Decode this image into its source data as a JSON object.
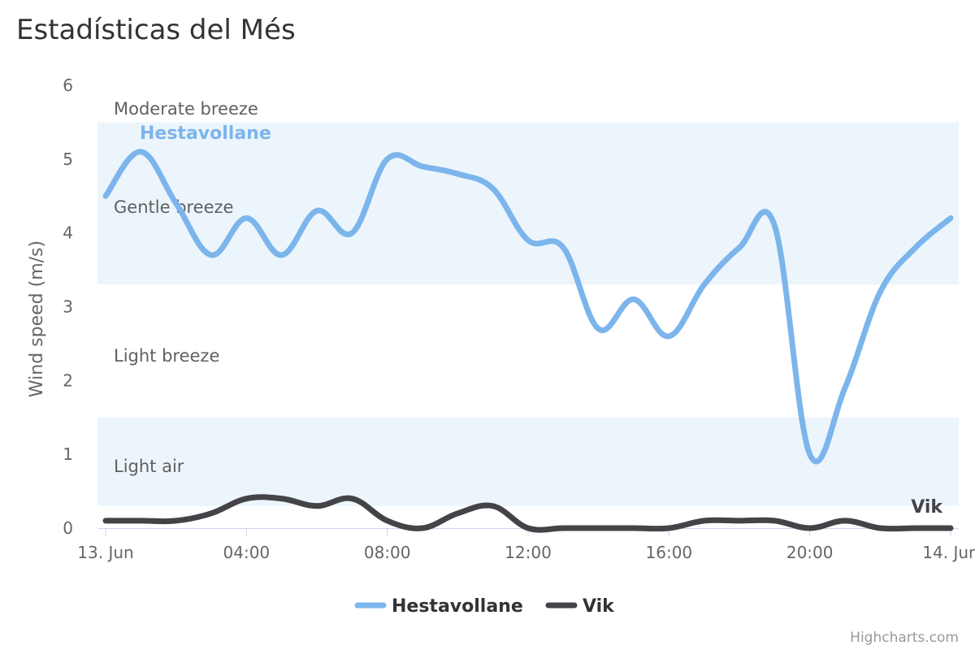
{
  "title": "Estadísticas del Més",
  "credits": "Highcharts.com",
  "colors": {
    "band": "#ecf5fb",
    "grid": "#e6e6e6",
    "axis": "#ccd6eb"
  },
  "chart_data": {
    "type": "line",
    "title": "Estadísticas del Més",
    "xlabel": "",
    "ylabel": "Wind speed (m/s)",
    "ylim": [
      0,
      6
    ],
    "xlim": [
      "13. Jun 00:00",
      "14. Jun 00:00"
    ],
    "x_ticks": [
      "13. Jun",
      "04:00",
      "08:00",
      "12:00",
      "16:00",
      "20:00",
      "14. Jun"
    ],
    "y_ticks": [
      "0",
      "1",
      "2",
      "3",
      "4",
      "5",
      "6"
    ],
    "grid": false,
    "legend": "bottom-center",
    "plot_bands": [
      {
        "from": 0.3,
        "to": 1.5,
        "label": "Light air",
        "shaded": true
      },
      {
        "from": 1.5,
        "to": 3.3,
        "label": "Light breeze",
        "shaded": false
      },
      {
        "from": 3.3,
        "to": 5.5,
        "label": "Gentle breeze",
        "shaded": true
      },
      {
        "from": 5.5,
        "to": 8.0,
        "label": "Moderate breeze",
        "shaded": false
      }
    ],
    "x": [
      "00:00",
      "01:00",
      "02:00",
      "03:00",
      "04:00",
      "05:00",
      "06:00",
      "07:00",
      "08:00",
      "09:00",
      "10:00",
      "11:00",
      "12:00",
      "13:00",
      "14:00",
      "15:00",
      "16:00",
      "17:00",
      "18:00",
      "19:00",
      "20:00",
      "21:00",
      "22:00",
      "23:00",
      "24:00"
    ],
    "series": [
      {
        "name": "Hestavollane",
        "color": "#7cb5ec",
        "values": [
          4.5,
          5.1,
          4.4,
          3.7,
          4.2,
          3.7,
          4.3,
          4.0,
          5.0,
          4.9,
          4.8,
          4.6,
          3.9,
          3.8,
          2.7,
          3.1,
          2.6,
          3.3,
          3.8,
          4.1,
          1.0,
          1.9,
          3.2,
          3.8,
          4.2
        ]
      },
      {
        "name": "Vik",
        "color": "#434348",
        "values": [
          0.1,
          0.1,
          0.1,
          0.2,
          0.4,
          0.4,
          0.3,
          0.4,
          0.1,
          0.0,
          0.2,
          0.3,
          0.0,
          0.0,
          0.0,
          0.0,
          0.0,
          0.1,
          0.1,
          0.1,
          0.0,
          0.1,
          0.0,
          0.0,
          0.0
        ]
      }
    ]
  }
}
